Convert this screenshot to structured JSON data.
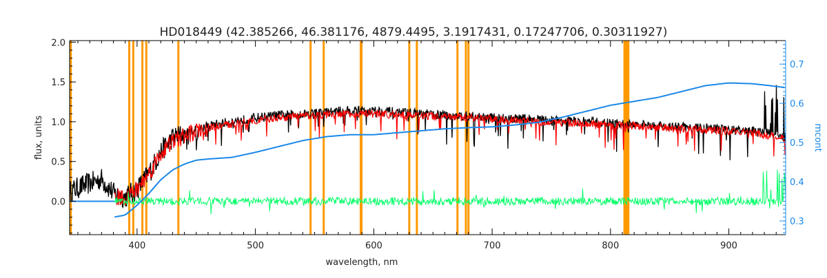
{
  "chart_data": {
    "type": "line",
    "title": "HD018449   (42.385266, 46.381176, 4879.4495, 3.1917431, 0.17247706, 0.30311927)",
    "xlabel": "wavelength, nm",
    "ylabel": "flux, units",
    "y2label": "mcont",
    "xlim": [
      343,
      948
    ],
    "ylim": [
      -0.42,
      2.02
    ],
    "y2lim": [
      0.265,
      0.76
    ],
    "x_ticks": [
      400,
      500,
      600,
      700,
      800,
      900
    ],
    "y_ticks": [
      0.0,
      0.5,
      1.0,
      1.5,
      2.0
    ],
    "y_tick_labels": [
      "0.0",
      "0.5",
      "1.0",
      "1.5",
      "2.0"
    ],
    "y2_ticks": [
      0.3,
      0.4,
      0.5,
      0.6,
      0.7
    ],
    "y2_tick_labels": [
      "0.3",
      "0.4",
      "0.5",
      "0.6",
      "0.7"
    ],
    "grid": false,
    "colors": {
      "observed": "#000000",
      "model": "#ff0000",
      "residual": "#00ff66",
      "continuum": "#1a88e8",
      "mask": "#ff9900",
      "right_axis": "#1a88e8"
    },
    "mask_lines": [
      344,
      393.4,
      396.8,
      404.5,
      407.8,
      434.9,
      546.6,
      557.7,
      589.0,
      589.6,
      630.0,
      636.4,
      670.7,
      677.8,
      680.0,
      811.8,
      812.6,
      813.5,
      814.3,
      815.1
    ],
    "series": [
      {
        "role": "observed",
        "x": [
          343,
          355,
          370,
          380,
          390,
          400,
          410,
          420,
          430,
          440,
          450,
          460,
          480,
          500,
          520,
          540,
          560,
          580,
          600,
          620,
          640,
          660,
          680,
          700,
          720,
          740,
          760,
          780,
          800,
          820,
          840,
          860,
          880,
          900,
          920,
          935,
          948
        ],
        "y": [
          0.12,
          0.2,
          0.28,
          0.1,
          0.05,
          0.15,
          0.35,
          0.62,
          0.8,
          0.85,
          0.9,
          0.95,
          1.0,
          1.05,
          1.08,
          1.1,
          1.12,
          1.14,
          1.14,
          1.12,
          1.1,
          1.08,
          1.07,
          1.05,
          1.04,
          1.03,
          1.01,
          1.0,
          0.98,
          0.96,
          0.95,
          0.93,
          0.92,
          0.9,
          0.88,
          0.85,
          0.8
        ]
      },
      {
        "role": "model",
        "x": [
          381,
          390,
          400,
          410,
          420,
          430,
          440,
          450,
          460,
          480,
          500,
          520,
          540,
          560,
          580,
          600,
          620,
          640,
          660,
          680,
          700,
          720,
          740,
          760,
          780,
          800,
          820,
          840,
          860,
          880,
          900,
          920,
          935,
          948
        ],
        "y": [
          0.05,
          0.05,
          0.15,
          0.35,
          0.6,
          0.75,
          0.82,
          0.88,
          0.92,
          0.97,
          1.02,
          1.05,
          1.07,
          1.09,
          1.1,
          1.1,
          1.09,
          1.08,
          1.06,
          1.05,
          1.03,
          1.02,
          1.0,
          0.99,
          0.98,
          0.96,
          0.95,
          0.93,
          0.91,
          0.9,
          0.88,
          0.86,
          0.82,
          0.78
        ]
      },
      {
        "role": "residual",
        "x_range": [
          381,
          948
        ],
        "y_mean": 0.0,
        "y_spread": 0.05
      },
      {
        "role": "continuum",
        "axis": "right",
        "x": [
          381,
          390,
          400,
          410,
          420,
          430,
          440,
          450,
          460,
          480,
          500,
          520,
          540,
          560,
          580,
          600,
          620,
          640,
          660,
          680,
          700,
          720,
          740,
          760,
          780,
          800,
          820,
          840,
          860,
          880,
          900,
          920,
          935,
          948
        ],
        "y": [
          0.31,
          0.315,
          0.34,
          0.37,
          0.405,
          0.43,
          0.445,
          0.455,
          0.458,
          0.462,
          0.475,
          0.49,
          0.505,
          0.515,
          0.52,
          0.52,
          0.525,
          0.53,
          0.535,
          0.538,
          0.54,
          0.545,
          0.552,
          0.565,
          0.58,
          0.595,
          0.605,
          0.615,
          0.63,
          0.645,
          0.652,
          0.65,
          0.645,
          0.64
        ]
      }
    ]
  }
}
